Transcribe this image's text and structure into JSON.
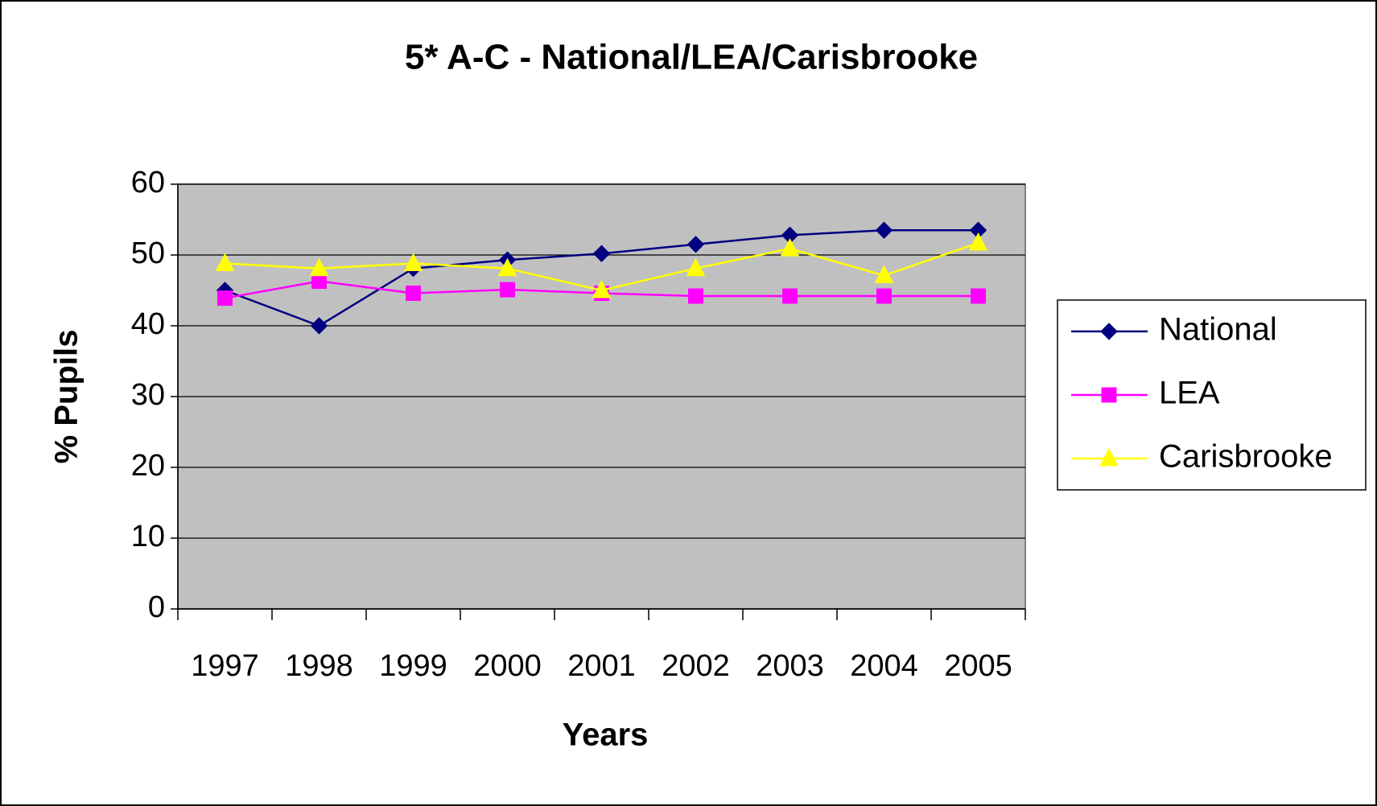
{
  "chart_data": {
    "type": "line",
    "title": "5* A-C - National/LEA/Carisbrooke",
    "x_label": "Years",
    "y_label": "% Pupils",
    "categories": [
      "1997",
      "1998",
      "1999",
      "2000",
      "2001",
      "2002",
      "2003",
      "2004",
      "2005"
    ],
    "series": [
      {
        "name": "National",
        "color": "#000080",
        "marker": "diamond",
        "values": [
          45,
          40,
          48.1,
          49.3,
          50.2,
          51.5,
          52.8,
          53.5,
          53.5
        ]
      },
      {
        "name": "LEA",
        "color": "#ff00ff",
        "marker": "square",
        "values": [
          43.9,
          46.3,
          44.6,
          45.1,
          44.6,
          44.2,
          44.2,
          44.2,
          44.2
        ]
      },
      {
        "name": "Carisbrooke",
        "color": "#ffff00",
        "marker": "triangle",
        "values": [
          48.8,
          48.1,
          48.8,
          48.1,
          45,
          48.1,
          50.9,
          47.1,
          51.7
        ]
      }
    ],
    "ylim": [
      0,
      60
    ],
    "yticks": [
      0,
      10,
      20,
      30,
      40,
      50,
      60
    ],
    "grid": true,
    "legend": "right"
  }
}
